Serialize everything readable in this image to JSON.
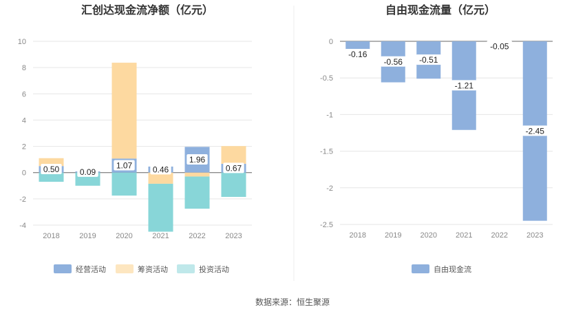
{
  "source": "数据来源：恒生聚源",
  "charts": {
    "left": {
      "title": "汇创达现金流净额（亿元）",
      "legend": [
        "经营活动",
        "筹资活动",
        "投资活动"
      ]
    },
    "right": {
      "title": "自由现金流量（亿元）",
      "legend": [
        "自由现金流"
      ]
    }
  },
  "colors": {
    "operating": "#8eb0dd",
    "financing": "#fdd9a0",
    "investing": "#88d6d8",
    "free": "#8eb0dd",
    "grid": "#e6e6e6",
    "axis": "#666666"
  },
  "chart_data": [
    {
      "type": "bar",
      "stacked": true,
      "title": "汇创达现金流净额（亿元）",
      "categories": [
        "2018",
        "2019",
        "2020",
        "2021",
        "2022",
        "2023"
      ],
      "series": [
        {
          "name": "经营活动",
          "values": [
            0.5,
            0.09,
            1.07,
            0.46,
            1.96,
            0.67
          ],
          "labels": [
            "0.50",
            "0.09",
            "1.07",
            "0.46",
            "1.96",
            "0.67"
          ]
        },
        {
          "name": "筹资活动",
          "values": [
            0.6,
            0.0,
            7.3,
            -0.85,
            -0.3,
            1.35
          ]
        },
        {
          "name": "投资活动",
          "values": [
            -0.7,
            -1.0,
            -1.75,
            -3.65,
            -2.45,
            -1.85
          ]
        }
      ],
      "ylim": [
        -4,
        10
      ],
      "yticks": [
        "10",
        "8",
        "6",
        "4",
        "2",
        "0",
        "-2",
        "-4"
      ],
      "legend_position": "bottom",
      "grid": true
    },
    {
      "type": "bar",
      "title": "自由现金流量（亿元）",
      "categories": [
        "2018",
        "2019",
        "2020",
        "2021",
        "2022",
        "2023"
      ],
      "series": [
        {
          "name": "自由现金流",
          "values": [
            -0.16,
            -0.56,
            -0.51,
            -1.21,
            -0.05,
            -2.45
          ],
          "labels": [
            "-0.16",
            "-0.56",
            "-0.51",
            "-1.21",
            "-0.05",
            "-2.45"
          ]
        }
      ],
      "ylim": [
        -2.5,
        0
      ],
      "yticks": [
        "0",
        "-0.5",
        "-1",
        "-1.5",
        "-2",
        "-2.5"
      ],
      "legend_position": "bottom",
      "grid": true
    }
  ]
}
